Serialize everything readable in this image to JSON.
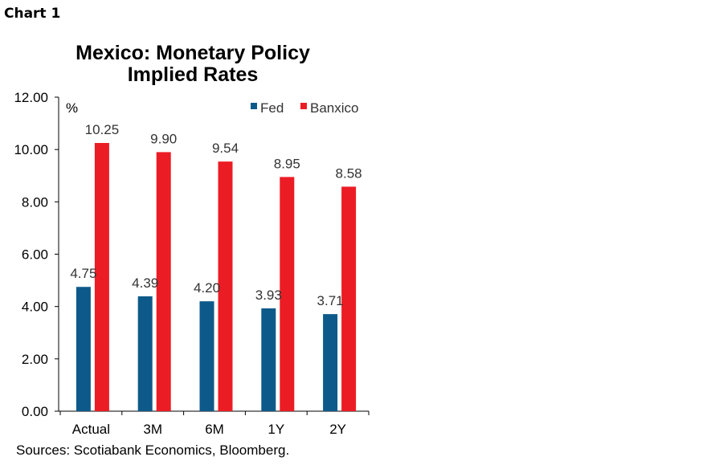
{
  "header_label": "Chart 1",
  "source_note": "Sources: Scotiabank Economics, Bloomberg.",
  "chart_data": {
    "type": "bar",
    "title": [
      "Mexico: Monetary Policy",
      "Implied Rates"
    ],
    "unit": "%",
    "categories": [
      "Actual",
      "3M",
      "6M",
      "1Y",
      "2Y"
    ],
    "series": [
      {
        "name": "Fed",
        "color": "#0d5a8a",
        "values": [
          4.75,
          4.39,
          4.2,
          3.93,
          3.71
        ],
        "labels": [
          "4.75",
          "4.39",
          "4.20",
          "3.93",
          "3.71"
        ]
      },
      {
        "name": "Banxico",
        "color": "#ec1c24",
        "values": [
          10.25,
          9.9,
          9.54,
          8.95,
          8.58
        ],
        "labels": [
          "10.25",
          "9.90",
          "9.54",
          "8.95",
          "8.58"
        ]
      }
    ],
    "ylim": [
      0,
      12
    ],
    "yticks": [
      "0.00",
      "2.00",
      "4.00",
      "6.00",
      "8.00",
      "10.00",
      "12.00"
    ],
    "legend": "top-right",
    "grid": false
  }
}
